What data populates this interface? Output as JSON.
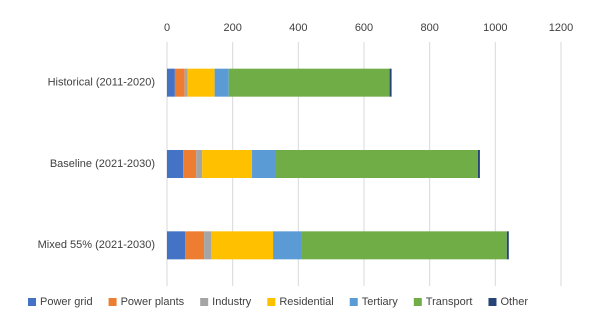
{
  "chart_data": {
    "type": "stacked_bar_horizontal",
    "categories": [
      "Historical (2011-2020)",
      "Baseline (2021-2030)",
      "Mixed 55% (2021-2030)"
    ],
    "series": [
      {
        "name": "Power grid",
        "color": "#4472c4",
        "values": [
          24,
          49,
          55
        ]
      },
      {
        "name": "Power plants",
        "color": "#ed7d31",
        "values": [
          30,
          40,
          58
        ]
      },
      {
        "name": "Industry",
        "color": "#a5a5a5",
        "values": [
          9,
          18,
          21
        ]
      },
      {
        "name": "Residential",
        "color": "#ffc000",
        "values": [
          82,
          152,
          189
        ]
      },
      {
        "name": "Tertiary",
        "color": "#5b9bd5",
        "values": [
          43,
          70,
          88
        ]
      },
      {
        "name": "Transport",
        "color": "#70ad47",
        "values": [
          490,
          618,
          624
        ]
      },
      {
        "name": "Other",
        "color": "#264478",
        "values": [
          6,
          6,
          6
        ]
      }
    ],
    "xlim": [
      0,
      1200
    ],
    "xticks": [
      0,
      200,
      400,
      600,
      800,
      1000,
      1200
    ],
    "grid": true,
    "legend": "bottom"
  }
}
